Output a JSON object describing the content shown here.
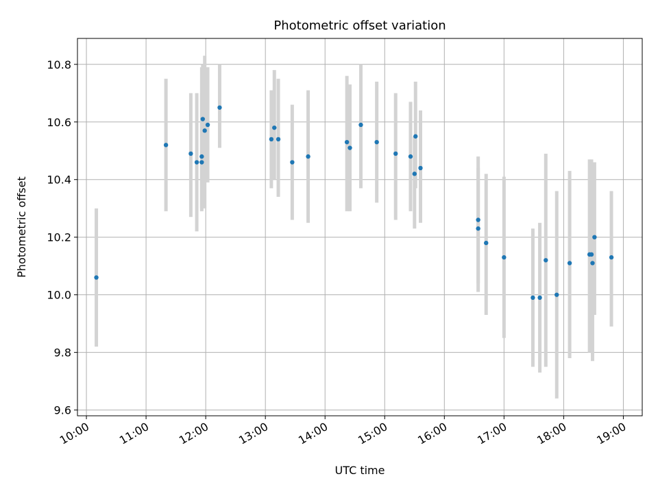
{
  "chart_data": {
    "type": "scatter",
    "title": "Photometric offset variation",
    "xlabel": "UTC time",
    "ylabel": "Photometric offset",
    "xlim": [
      "09:51",
      "19:19"
    ],
    "ylim": [
      9.58,
      10.89
    ],
    "x_ticks": [
      "10:00",
      "11:00",
      "12:00",
      "13:00",
      "14:00",
      "15:00",
      "16:00",
      "17:00",
      "18:00",
      "19:00"
    ],
    "y_ticks": [
      9.6,
      9.8,
      10.0,
      10.2,
      10.4,
      10.6,
      10.8
    ],
    "y_tick_labels": [
      "9.6",
      "9.8",
      "10.0",
      "10.2",
      "10.4",
      "10.6",
      "10.8"
    ],
    "grid": true,
    "colors": {
      "points": "#1f77b4",
      "error_bars": "#d3d3d3",
      "grid": "#b0b0b0",
      "axes": "#000000"
    },
    "points": [
      {
        "x": "10:10",
        "y": 10.06,
        "err_low": 9.82,
        "err_high": 10.3
      },
      {
        "x": "11:20",
        "y": 10.52,
        "err_low": 10.29,
        "err_high": 10.75
      },
      {
        "x": "11:45",
        "y": 10.49,
        "err_low": 10.27,
        "err_high": 10.7
      },
      {
        "x": "11:51",
        "y": 10.46,
        "err_low": 10.22,
        "err_high": 10.7
      },
      {
        "x": "11:56",
        "y": 10.48,
        "err_low": 10.29,
        "err_high": 10.79
      },
      {
        "x": "11:56",
        "y": 10.46,
        "err_low": 10.3,
        "err_high": 10.7
      },
      {
        "x": "11:57",
        "y": 10.61,
        "err_low": 10.4,
        "err_high": 10.8
      },
      {
        "x": "11:59",
        "y": 10.57,
        "err_low": 10.3,
        "err_high": 10.83
      },
      {
        "x": "12:02",
        "y": 10.59,
        "err_low": 10.39,
        "err_high": 10.79
      },
      {
        "x": "12:14",
        "y": 10.65,
        "err_low": 10.51,
        "err_high": 10.8
      },
      {
        "x": "13:06",
        "y": 10.54,
        "err_low": 10.37,
        "err_high": 10.71
      },
      {
        "x": "13:09",
        "y": 10.58,
        "err_low": 10.4,
        "err_high": 10.78
      },
      {
        "x": "13:13",
        "y": 10.54,
        "err_low": 10.34,
        "err_high": 10.75
      },
      {
        "x": "13:27",
        "y": 10.46,
        "err_low": 10.26,
        "err_high": 10.66
      },
      {
        "x": "13:43",
        "y": 10.48,
        "err_low": 10.25,
        "err_high": 10.71
      },
      {
        "x": "14:22",
        "y": 10.53,
        "err_low": 10.29,
        "err_high": 10.76
      },
      {
        "x": "14:25",
        "y": 10.51,
        "err_low": 10.29,
        "err_high": 10.73
      },
      {
        "x": "14:36",
        "y": 10.59,
        "err_low": 10.37,
        "err_high": 10.8
      },
      {
        "x": "14:52",
        "y": 10.53,
        "err_low": 10.32,
        "err_high": 10.74
      },
      {
        "x": "15:11",
        "y": 10.49,
        "err_low": 10.26,
        "err_high": 10.7
      },
      {
        "x": "15:26",
        "y": 10.48,
        "err_low": 10.29,
        "err_high": 10.67
      },
      {
        "x": "15:30",
        "y": 10.42,
        "err_low": 10.23,
        "err_high": 10.55
      },
      {
        "x": "15:31",
        "y": 10.55,
        "err_low": 10.37,
        "err_high": 10.74
      },
      {
        "x": "15:36",
        "y": 10.44,
        "err_low": 10.25,
        "err_high": 10.64
      },
      {
        "x": "16:34",
        "y": 10.26,
        "err_low": 10.04,
        "err_high": 10.48
      },
      {
        "x": "16:34",
        "y": 10.23,
        "err_low": 10.01,
        "err_high": 10.44
      },
      {
        "x": "16:42",
        "y": 10.18,
        "err_low": 9.93,
        "err_high": 10.42
      },
      {
        "x": "17:00",
        "y": 10.13,
        "err_low": 9.85,
        "err_high": 10.41
      },
      {
        "x": "17:29",
        "y": 9.99,
        "err_low": 9.75,
        "err_high": 10.23
      },
      {
        "x": "17:36",
        "y": 9.99,
        "err_low": 9.73,
        "err_high": 10.25
      },
      {
        "x": "17:42",
        "y": 10.12,
        "err_low": 9.75,
        "err_high": 10.49
      },
      {
        "x": "17:53",
        "y": 10.0,
        "err_low": 9.64,
        "err_high": 10.36
      },
      {
        "x": "18:06",
        "y": 10.11,
        "err_low": 9.78,
        "err_high": 10.43
      },
      {
        "x": "18:26",
        "y": 10.14,
        "err_low": 9.8,
        "err_high": 10.47
      },
      {
        "x": "18:28",
        "y": 10.14,
        "err_low": 9.81,
        "err_high": 10.47
      },
      {
        "x": "18:29",
        "y": 10.11,
        "err_low": 9.77,
        "err_high": 10.46
      },
      {
        "x": "18:31",
        "y": 10.2,
        "err_low": 9.93,
        "err_high": 10.46
      },
      {
        "x": "18:48",
        "y": 10.13,
        "err_low": 9.89,
        "err_high": 10.36
      }
    ]
  }
}
